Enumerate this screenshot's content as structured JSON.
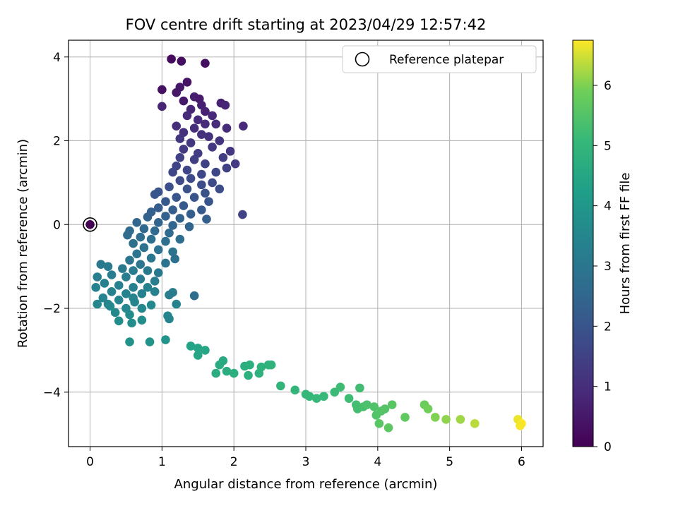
{
  "chart_data": {
    "type": "scatter",
    "title": "FOV centre drift starting at 2023/04/29 12:57:42",
    "xlabel": "Angular distance from reference (arcmin)",
    "ylabel": "Rotation from reference (arcmin)",
    "xlim": [
      -0.3,
      6.3
    ],
    "ylim": [
      -5.3,
      4.4
    ],
    "xticks": [
      0,
      1,
      2,
      3,
      4,
      5,
      6
    ],
    "yticks": [
      -4,
      -2,
      0,
      2,
      4
    ],
    "grid": true,
    "legend": {
      "position": "top-right",
      "entries": [
        {
          "label": "Reference platepar",
          "marker": "open-circle"
        }
      ]
    },
    "colorbar": {
      "label": "Hours from first FF file",
      "min": 0,
      "max": 6.75,
      "ticks": [
        0,
        1,
        2,
        3,
        4,
        5,
        6
      ],
      "colormap": "viridis"
    },
    "reference_point": {
      "x": 0,
      "y": 0,
      "hours": 0
    },
    "series": [
      {
        "columns": [
          "x",
          "y",
          "hours"
        ],
        "points": [
          [
            1.13,
            3.95,
            0.2
          ],
          [
            1.27,
            3.9,
            0.25
          ],
          [
            1.6,
            3.85,
            0.3
          ],
          [
            1.35,
            3.4,
            0.4
          ],
          [
            1.0,
            3.22,
            0.35
          ],
          [
            1.25,
            3.28,
            0.5
          ],
          [
            1.2,
            3.15,
            0.45
          ],
          [
            1.45,
            3.05,
            0.6
          ],
          [
            1.52,
            3.0,
            0.55
          ],
          [
            1.82,
            2.9,
            0.7
          ],
          [
            1.88,
            2.85,
            0.75
          ],
          [
            1.0,
            2.82,
            0.8
          ],
          [
            1.3,
            2.95,
            0.5
          ],
          [
            1.55,
            2.85,
            0.65
          ],
          [
            1.6,
            2.7,
            0.7
          ],
          [
            1.4,
            2.75,
            0.8
          ],
          [
            1.7,
            2.6,
            0.85
          ],
          [
            1.35,
            2.6,
            0.9
          ],
          [
            1.75,
            2.4,
            0.95
          ],
          [
            1.5,
            2.5,
            0.9
          ],
          [
            1.2,
            2.35,
            1.0
          ],
          [
            1.9,
            2.3,
            0.95
          ],
          [
            2.13,
            2.35,
            0.9
          ],
          [
            1.3,
            2.2,
            1.05
          ],
          [
            1.45,
            2.3,
            1.0
          ],
          [
            1.6,
            2.4,
            0.95
          ],
          [
            1.65,
            2.1,
            1.1
          ],
          [
            1.8,
            2.0,
            1.15
          ],
          [
            1.25,
            2.05,
            1.2
          ],
          [
            1.55,
            2.15,
            1.1
          ],
          [
            1.4,
            1.95,
            1.2
          ],
          [
            1.7,
            1.85,
            1.25
          ],
          [
            1.95,
            1.75,
            1.2
          ],
          [
            1.3,
            1.8,
            1.3
          ],
          [
            1.5,
            1.7,
            1.35
          ],
          [
            1.85,
            1.6,
            1.4
          ],
          [
            1.25,
            1.6,
            1.45
          ],
          [
            1.45,
            1.55,
            1.4
          ],
          [
            1.6,
            1.45,
            1.5
          ],
          [
            2.02,
            1.45,
            1.3
          ],
          [
            1.9,
            1.35,
            1.45
          ],
          [
            1.2,
            1.4,
            1.55
          ],
          [
            1.35,
            1.3,
            1.6
          ],
          [
            1.75,
            1.25,
            1.6
          ],
          [
            1.55,
            1.2,
            1.65
          ],
          [
            1.15,
            1.25,
            1.65
          ],
          [
            1.4,
            1.1,
            1.7
          ],
          [
            1.7,
            1.0,
            1.75
          ],
          [
            1.25,
            1.05,
            1.75
          ],
          [
            1.55,
            0.95,
            1.8
          ],
          [
            1.8,
            0.85,
            1.8
          ],
          [
            1.1,
            0.9,
            1.85
          ],
          [
            1.35,
            0.85,
            1.9
          ],
          [
            1.6,
            0.75,
            1.95
          ],
          [
            0.95,
            0.78,
            1.95
          ],
          [
            1.45,
            0.65,
            2.0
          ],
          [
            1.2,
            0.65,
            2.05
          ],
          [
            1.65,
            0.55,
            2.05
          ],
          [
            0.9,
            0.72,
            2.1
          ],
          [
            1.05,
            0.55,
            2.1
          ],
          [
            1.3,
            0.45,
            2.15
          ],
          [
            1.55,
            0.35,
            2.15
          ],
          [
            0.95,
            0.4,
            2.2
          ],
          [
            1.15,
            0.35,
            2.25
          ],
          [
            1.4,
            0.25,
            2.25
          ],
          [
            0.85,
            0.3,
            2.3
          ],
          [
            1.05,
            0.2,
            2.35
          ],
          [
            1.25,
            0.15,
            2.4
          ],
          [
            2.12,
            0.24,
            1.5
          ],
          [
            1.62,
            0.13,
            2.3
          ],
          [
            0.8,
            0.18,
            2.4
          ],
          [
            0.95,
            0.05,
            2.45
          ],
          [
            1.15,
            -0.02,
            2.5
          ],
          [
            1.38,
            -0.05,
            2.45
          ],
          [
            0.65,
            0.05,
            2.5
          ],
          [
            0.75,
            -0.1,
            2.55
          ],
          [
            0.9,
            -0.15,
            2.6
          ],
          [
            1.1,
            -0.2,
            2.6
          ],
          [
            0.55,
            -0.15,
            2.6
          ],
          [
            0.52,
            -0.25,
            2.65
          ],
          [
            0.7,
            -0.3,
            2.7
          ],
          [
            0.85,
            -0.35,
            2.75
          ],
          [
            1.05,
            -0.4,
            2.75
          ],
          [
            1.25,
            -0.35,
            2.7
          ],
          [
            0.6,
            -0.45,
            2.8
          ],
          [
            0.75,
            -0.55,
            2.85
          ],
          [
            0.95,
            -0.6,
            2.85
          ],
          [
            1.15,
            -0.65,
            2.9
          ],
          [
            0.65,
            -0.7,
            2.95
          ],
          [
            0.85,
            -0.8,
            2.95
          ],
          [
            1.18,
            -0.82,
            2.8
          ],
          [
            0.55,
            -0.85,
            3.0
          ],
          [
            0.7,
            -0.95,
            3.0
          ],
          [
            1.05,
            -0.92,
            2.9
          ],
          [
            0.15,
            -0.95,
            3.05
          ],
          [
            0.25,
            -1.0,
            3.1
          ],
          [
            0.45,
            -1.05,
            3.1
          ],
          [
            0.6,
            -1.1,
            3.15
          ],
          [
            0.8,
            -1.1,
            3.1
          ],
          [
            0.95,
            -1.15,
            3.05
          ],
          [
            0.3,
            -1.2,
            3.2
          ],
          [
            0.5,
            -1.25,
            3.2
          ],
          [
            0.7,
            -1.3,
            3.25
          ],
          [
            0.1,
            -1.25,
            3.25
          ],
          [
            0.9,
            -1.35,
            3.2
          ],
          [
            0.2,
            -1.4,
            3.3
          ],
          [
            0.4,
            -1.45,
            3.3
          ],
          [
            0.6,
            -1.5,
            3.35
          ],
          [
            0.8,
            -1.5,
            3.3
          ],
          [
            0.08,
            -1.5,
            3.35
          ],
          [
            0.3,
            -1.6,
            3.4
          ],
          [
            0.5,
            -1.65,
            3.4
          ],
          [
            0.72,
            -1.65,
            3.35
          ],
          [
            0.9,
            -1.6,
            3.3
          ],
          [
            1.1,
            -1.68,
            3.2
          ],
          [
            1.15,
            -1.62,
            3.15
          ],
          [
            0.18,
            -1.75,
            3.45
          ],
          [
            0.4,
            -1.8,
            3.45
          ],
          [
            0.62,
            -1.85,
            3.5
          ],
          [
            0.1,
            -1.9,
            3.5
          ],
          [
            0.28,
            -1.95,
            3.55
          ],
          [
            0.5,
            -2.0,
            3.55
          ],
          [
            0.72,
            -2.0,
            3.6
          ],
          [
            0.85,
            -1.92,
            3.55
          ],
          [
            1.2,
            -1.9,
            3.4
          ],
          [
            0.35,
            -2.1,
            3.6
          ],
          [
            0.55,
            -2.15,
            3.65
          ],
          [
            1.08,
            -2.18,
            3.5
          ],
          [
            1.1,
            -2.25,
            3.45
          ],
          [
            0.4,
            -2.3,
            3.7
          ],
          [
            0.58,
            -2.35,
            3.7
          ],
          [
            0.72,
            -2.28,
            3.7
          ],
          [
            0.25,
            -1.9,
            3.5
          ],
          [
            0.6,
            -1.75,
            3.45
          ],
          [
            1.45,
            -1.7,
            2.7
          ],
          [
            0.55,
            -2.8,
            3.85
          ],
          [
            0.83,
            -2.8,
            3.9
          ],
          [
            1.05,
            -2.75,
            3.9
          ],
          [
            1.4,
            -2.9,
            4.4
          ],
          [
            1.5,
            -2.95,
            4.45
          ],
          [
            1.6,
            -3.0,
            4.5
          ],
          [
            1.5,
            -3.12,
            4.5
          ],
          [
            1.85,
            -3.25,
            4.6
          ],
          [
            1.8,
            -3.35,
            4.65
          ],
          [
            1.9,
            -3.5,
            4.7
          ],
          [
            2.0,
            -3.55,
            4.75
          ],
          [
            1.75,
            -3.55,
            4.7
          ],
          [
            2.15,
            -3.38,
            4.75
          ],
          [
            2.22,
            -3.35,
            4.8
          ],
          [
            2.38,
            -3.4,
            4.85
          ],
          [
            2.48,
            -3.35,
            4.85
          ],
          [
            2.52,
            -3.35,
            4.9
          ],
          [
            2.2,
            -3.6,
            4.8
          ],
          [
            2.35,
            -3.55,
            4.85
          ],
          [
            2.65,
            -3.85,
            4.95
          ],
          [
            2.85,
            -3.95,
            5.0
          ],
          [
            3.0,
            -4.05,
            5.05
          ],
          [
            3.05,
            -4.1,
            5.05
          ],
          [
            3.15,
            -4.15,
            5.1
          ],
          [
            3.25,
            -4.1,
            5.1
          ],
          [
            3.4,
            -4.0,
            5.15
          ],
          [
            3.48,
            -3.88,
            5.2
          ],
          [
            3.6,
            -4.15,
            5.2
          ],
          [
            3.7,
            -4.3,
            5.3
          ],
          [
            3.75,
            -3.9,
            5.25
          ],
          [
            3.72,
            -4.4,
            5.3
          ],
          [
            3.8,
            -4.35,
            5.35
          ],
          [
            3.85,
            -4.3,
            5.4
          ],
          [
            3.95,
            -4.35,
            5.45
          ],
          [
            3.98,
            -4.55,
            5.5
          ],
          [
            4.05,
            -4.45,
            5.5
          ],
          [
            4.1,
            -4.4,
            5.55
          ],
          [
            4.2,
            -4.3,
            5.6
          ],
          [
            4.02,
            -4.75,
            5.6
          ],
          [
            4.15,
            -4.85,
            5.65
          ],
          [
            4.38,
            -4.6,
            5.7
          ],
          [
            4.65,
            -4.3,
            5.85
          ],
          [
            4.7,
            -4.4,
            5.9
          ],
          [
            4.8,
            -4.6,
            6.0
          ],
          [
            4.95,
            -4.65,
            6.1
          ],
          [
            5.15,
            -4.65,
            6.2
          ],
          [
            5.35,
            -4.75,
            6.35
          ],
          [
            5.95,
            -4.65,
            6.65
          ],
          [
            6.0,
            -4.75,
            6.75
          ],
          [
            5.98,
            -4.8,
            6.7
          ]
        ]
      }
    ]
  }
}
